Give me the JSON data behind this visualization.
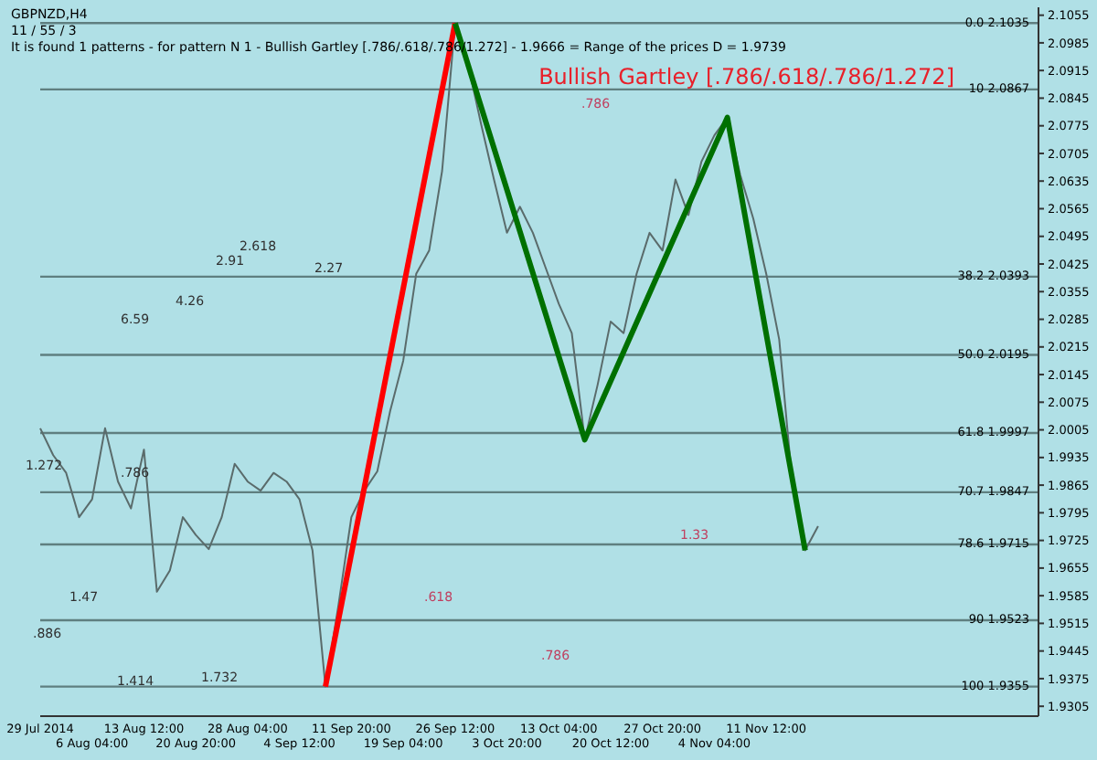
{
  "chart_data": {
    "type": "line",
    "title": "GBPNZD,H4",
    "subtitle": "11 / 55 / 3",
    "annotations": [
      "It is found 1 patterns  -  for pattern N 1 - Bullish Gartley [.786/.618/.786/1.272] - 1.9666 = Range of the prices D = 1.9739",
      "Bullish Gartley [.786/.618/.786/1.272]",
      ".786",
      "1.33",
      ".618",
      ".786",
      "2.27",
      "4.26",
      "6.59",
      "2.618",
      "2.91",
      "1.272",
      ".786",
      "1.47",
      ".886",
      "1.414",
      "1.732"
    ],
    "categories": [
      "29 Jul 2014",
      null,
      null,
      null,
      "6 Aug 04:00",
      null,
      null,
      null,
      "13 Aug 12:00",
      null,
      null,
      null,
      "20 Aug 20:00",
      null,
      null,
      null,
      "28 Aug 04:00",
      null,
      null,
      null,
      "4 Sep 12:00",
      null,
      null,
      null,
      "11 Sep 20:00",
      null,
      null,
      null,
      "19 Sep 04:00",
      null,
      null,
      null,
      "26 Sep 12:00",
      null,
      null,
      null,
      "3 Oct 20:00",
      null,
      null,
      null,
      "13 Oct 04:00",
      null,
      null,
      null,
      "20 Oct 12:00",
      null,
      null,
      null,
      "27 Oct 20:00",
      null,
      null,
      null,
      "4 Nov 04:00",
      null,
      null,
      null,
      "11 Nov 12:00",
      null,
      null,
      null,
      null,
      null,
      null,
      null,
      null,
      null,
      null,
      null,
      null,
      null,
      null,
      null,
      null,
      null,
      null,
      null,
      null,
      null
    ],
    "ylim": [
      1.928,
      2.1075
    ],
    "yticks": [
      1.9305,
      1.9375,
      1.9445,
      1.9515,
      1.9585,
      1.9655,
      1.9725,
      1.9795,
      1.9865,
      1.9935,
      2.0005,
      2.0075,
      2.0145,
      2.0215,
      2.0285,
      2.0355,
      2.0425,
      2.0495,
      2.0565,
      2.0635,
      2.0705,
      2.0775,
      2.0845,
      2.0915,
      2.0985,
      2.1055
    ],
    "marker": "none",
    "line_style": "solid",
    "ref_lines": [
      {
        "axis": "y",
        "value": 2.1035,
        "label": "0.0  2.1035",
        "color": "#5f7f80"
      },
      {
        "axis": "y",
        "value": 2.0867,
        "label": "10  2.0867",
        "color": "#5f7f80"
      },
      {
        "axis": "y",
        "value": 2.0393,
        "label": "38.2  2.0393",
        "color": "#5f7f80"
      },
      {
        "axis": "y",
        "value": 2.0195,
        "label": "50.0  2.0195",
        "color": "#5f7f80"
      },
      {
        "axis": "y",
        "value": 1.9997,
        "label": "61.8  1.9997",
        "color": "#5f7f80"
      },
      {
        "axis": "y",
        "value": 1.9847,
        "label": "70.7  1.9847",
        "color": "#5f7f80"
      },
      {
        "axis": "y",
        "value": 1.9715,
        "label": "78.6  1.9715",
        "color": "#5f7f80"
      },
      {
        "axis": "y",
        "value": 1.9523,
        "label": "90  1.9523",
        "color": "#5f7f80"
      },
      {
        "axis": "y",
        "value": 1.9355,
        "label": "100  1.9355",
        "color": "#5f7f80"
      }
    ],
    "series": [
      {
        "color": "#5a6b6b",
        "values": [
          2.0009,
          1.9941,
          1.9896,
          1.9784,
          1.9829,
          2.0009,
          1.9874,
          1.9806,
          1.9955,
          1.9595,
          1.9649,
          1.9784,
          1.9739,
          1.9703,
          1.9784,
          1.9919,
          1.9874,
          1.9851,
          1.9896,
          1.9874,
          1.9829,
          1.97,
          1.9355,
          1.956,
          1.9784,
          1.9851,
          1.99,
          2.0054,
          2.018,
          2.04,
          2.0459,
          2.0661,
          2.1035,
          2.0931,
          2.078,
          2.0639,
          2.0504,
          2.057,
          2.0504,
          2.0414,
          2.0324,
          2.025,
          1.998,
          2.012,
          2.0279,
          2.025,
          2.04,
          2.0504,
          2.0459,
          2.0639,
          2.0549,
          2.0684,
          2.0751,
          2.0796,
          2.065,
          2.054,
          2.04,
          2.0234,
          1.9874,
          1.97,
          1.9761,
          null,
          null,
          null,
          null,
          null,
          null,
          null,
          null,
          null,
          null,
          null,
          null,
          null,
          null,
          null,
          null,
          null
        ]
      },
      {
        "color": "#ff0000",
        "values": [
          null,
          null,
          null,
          null,
          null,
          null,
          null,
          null,
          null,
          null,
          null,
          null,
          null,
          null,
          null,
          null,
          null,
          null,
          null,
          null,
          null,
          null,
          1.9355,
          null,
          null,
          null,
          null,
          null,
          null,
          null,
          null,
          null,
          2.1035,
          null,
          null,
          null,
          null,
          null,
          null,
          null,
          null,
          null,
          null,
          null,
          null,
          null,
          null,
          null,
          null,
          null,
          null,
          null,
          null,
          null,
          null,
          null,
          null,
          null,
          null,
          null,
          null,
          null,
          null,
          null,
          null,
          null,
          null,
          null,
          null,
          null,
          null,
          null,
          null,
          null,
          null,
          null,
          null,
          null
        ]
      },
      {
        "color": "#007000",
        "values": [
          null,
          null,
          null,
          null,
          null,
          null,
          null,
          null,
          null,
          null,
          null,
          null,
          null,
          null,
          null,
          null,
          null,
          null,
          null,
          null,
          null,
          null,
          null,
          null,
          null,
          null,
          null,
          null,
          null,
          null,
          null,
          null,
          2.1035,
          null,
          null,
          null,
          null,
          null,
          null,
          null,
          null,
          null,
          1.998,
          null,
          null,
          null,
          null,
          null,
          null,
          null,
          null,
          null,
          null,
          2.0796,
          null,
          null,
          null,
          null,
          null,
          1.97,
          null,
          null,
          null,
          null,
          null,
          null,
          null,
          null,
          null,
          null,
          null,
          null,
          null,
          null,
          null,
          null,
          null,
          null
        ]
      }
    ]
  }
}
